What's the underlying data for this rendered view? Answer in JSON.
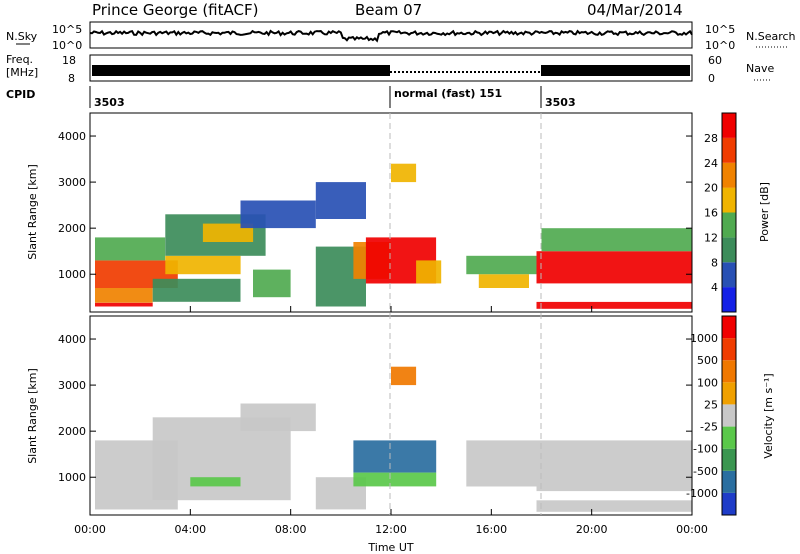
{
  "header": {
    "station": "Prince George (fitACF)",
    "beam": "Beam 07",
    "date": "04/Mar/2014"
  },
  "status": {
    "nsky_label": "N.Sky",
    "nsky_ticks": [
      "10^5",
      "10^0"
    ],
    "nsearch_label": "N.Search",
    "freq_label_line1": "Freq.",
    "freq_label_line2": "[MHz]",
    "freq_ticks": [
      "18",
      "8"
    ],
    "nave_ticks": [
      "60",
      "0"
    ],
    "nave_label": "Nave",
    "cpid_label": "CPID",
    "cpid_segments": [
      {
        "name": "3503",
        "start": 0,
        "end": 12
      },
      {
        "name": "normal (fast) 151",
        "start": 12,
        "end": 18
      },
      {
        "name": "3503",
        "start": 18,
        "end": 24
      }
    ]
  },
  "chart_data": [
    {
      "type": "heatmap",
      "quantity": "power",
      "ylabel": "Slant Range [km]",
      "xlabel": "",
      "ylim": [
        180,
        4500
      ],
      "yticks": [
        1000,
        2000,
        3000,
        4000
      ],
      "xlim": [
        0,
        24
      ],
      "colorbar": {
        "label": "Power [dB]",
        "ticks": [
          "4",
          "8",
          "12",
          "16",
          "20",
          "24",
          "28"
        ],
        "colors": [
          "#1420e6",
          "#2850b4",
          "#3c8c5a",
          "#50aa50",
          "#f0b400",
          "#f08200",
          "#f03c00",
          "#f00000"
        ]
      },
      "regions": [
        {
          "t": [
            0.2,
            2.5
          ],
          "r": [
            300,
            380
          ],
          "level": 7
        },
        {
          "t": [
            0.2,
            2.5
          ],
          "r": [
            380,
            700
          ],
          "level": 5
        },
        {
          "t": [
            0.2,
            3.5
          ],
          "r": [
            700,
            1300
          ],
          "level": 6
        },
        {
          "t": [
            0.2,
            3.0
          ],
          "r": [
            1300,
            1800
          ],
          "level": 3
        },
        {
          "t": [
            2.5,
            6.0
          ],
          "r": [
            400,
            900
          ],
          "level": 2
        },
        {
          "t": [
            3.0,
            6.0
          ],
          "r": [
            1000,
            1400
          ],
          "level": 4
        },
        {
          "t": [
            3.0,
            7.0
          ],
          "r": [
            1400,
            2300
          ],
          "level": 2
        },
        {
          "t": [
            4.5,
            6.5
          ],
          "r": [
            1700,
            2100
          ],
          "level": 4
        },
        {
          "t": [
            6.5,
            8.0
          ],
          "r": [
            500,
            1100
          ],
          "level": 3
        },
        {
          "t": [
            6.0,
            9.0
          ],
          "r": [
            2000,
            2600
          ],
          "level": 1
        },
        {
          "t": [
            9.0,
            11.0
          ],
          "r": [
            300,
            1600
          ],
          "level": 2
        },
        {
          "t": [
            9.0,
            11.0
          ],
          "r": [
            2200,
            3000
          ],
          "level": 1
        },
        {
          "t": [
            10.5,
            12.0
          ],
          "r": [
            900,
            1700
          ],
          "level": 5
        },
        {
          "t": [
            11.0,
            13.8
          ],
          "r": [
            800,
            1800
          ],
          "level": 7
        },
        {
          "t": [
            12.0,
            13.0
          ],
          "r": [
            3000,
            3400
          ],
          "level": 4
        },
        {
          "t": [
            13.0,
            14.0
          ],
          "r": [
            800,
            1300
          ],
          "level": 4
        },
        {
          "t": [
            15.5,
            17.5
          ],
          "r": [
            700,
            1000
          ],
          "level": 4
        },
        {
          "t": [
            15.0,
            17.8
          ],
          "r": [
            1000,
            1400
          ],
          "level": 3
        },
        {
          "t": [
            17.8,
            24.0
          ],
          "r": [
            800,
            1500
          ],
          "level": 7
        },
        {
          "t": [
            17.8,
            24.0
          ],
          "r": [
            250,
            400
          ],
          "level": 7
        },
        {
          "t": [
            18.0,
            24.0
          ],
          "r": [
            1500,
            2000
          ],
          "level": 3
        }
      ]
    },
    {
      "type": "heatmap",
      "quantity": "velocity",
      "ylabel": "Slant Range [km]",
      "xlabel": "Time UT",
      "ylim": [
        180,
        4500
      ],
      "yticks": [
        1000,
        2000,
        3000,
        4000
      ],
      "xlim": [
        0,
        24
      ],
      "xticks": [
        "00:00",
        "04:00",
        "08:00",
        "12:00",
        "16:00",
        "20:00",
        "00:00"
      ],
      "colorbar": {
        "label": "Velocity [m s⁻¹]",
        "ticks": [
          "1000",
          "500",
          "100",
          "25",
          "-25",
          "-100",
          "-500",
          "-1000"
        ],
        "colors": [
          "#1e3cc8",
          "#2a6ea0",
          "#3a9650",
          "#5ac84a",
          "#c8c8c8",
          "#f0a000",
          "#f07800",
          "#f03c00",
          "#f00000"
        ]
      },
      "regions": [
        {
          "t": [
            0.2,
            3.5
          ],
          "r": [
            300,
            1800
          ],
          "level": 4
        },
        {
          "t": [
            2.5,
            8.0
          ],
          "r": [
            500,
            2300
          ],
          "level": 4
        },
        {
          "t": [
            4.0,
            6.0
          ],
          "r": [
            800,
            1000
          ],
          "level": 3
        },
        {
          "t": [
            6.0,
            9.0
          ],
          "r": [
            2000,
            2600
          ],
          "level": 4
        },
        {
          "t": [
            9.0,
            11.0
          ],
          "r": [
            300,
            1000
          ],
          "level": 4
        },
        {
          "t": [
            10.5,
            13.8
          ],
          "r": [
            1100,
            1800
          ],
          "level": 1
        },
        {
          "t": [
            10.5,
            13.8
          ],
          "r": [
            800,
            1100
          ],
          "level": 3
        },
        {
          "t": [
            12.0,
            13.0
          ],
          "r": [
            3000,
            3400
          ],
          "level": 6
        },
        {
          "t": [
            15.0,
            17.8
          ],
          "r": [
            800,
            1800
          ],
          "level": 4
        },
        {
          "t": [
            17.8,
            24.0
          ],
          "r": [
            700,
            1800
          ],
          "level": 4
        },
        {
          "t": [
            17.8,
            24.0
          ],
          "r": [
            250,
            500
          ],
          "level": 4
        }
      ]
    }
  ]
}
